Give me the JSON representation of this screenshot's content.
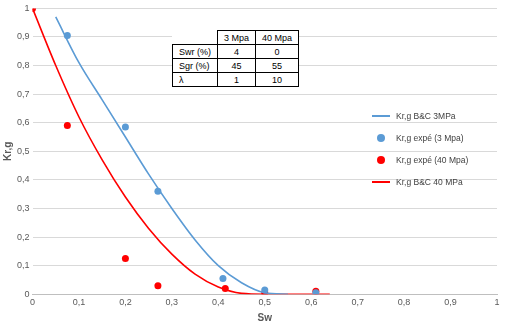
{
  "chart_data": {
    "type": "scatter",
    "x_label": "Sw",
    "y_label": "Kr,g",
    "xlim": [
      0,
      1
    ],
    "ylim": [
      0,
      1
    ],
    "xticks": [
      0,
      {
        "value": 0.1,
        "label": "0,1"
      },
      {
        "value": 0.2,
        "label": "0,2"
      },
      {
        "value": 0.3,
        "label": "0,3"
      },
      {
        "value": 0.4,
        "label": "0,4"
      },
      {
        "value": 0.5,
        "label": "0,5"
      },
      {
        "value": 0.6,
        "label": "0,6"
      },
      {
        "value": 0.7,
        "label": "0,7"
      },
      {
        "value": 0.8,
        "label": "0,8"
      },
      {
        "value": 0.9,
        "label": "0,9"
      },
      1
    ],
    "yticks": [
      0,
      {
        "value": 0.1,
        "label": "0,1"
      },
      {
        "value": 0.2,
        "label": "0,2"
      },
      {
        "value": 0.3,
        "label": "0,3"
      },
      {
        "value": 0.4,
        "label": "0,4"
      },
      {
        "value": 0.5,
        "label": "0,5"
      },
      {
        "value": 0.6,
        "label": "0,6"
      },
      {
        "value": 0.7,
        "label": "0,7"
      },
      {
        "value": 0.8,
        "label": "0,8"
      },
      {
        "value": 0.9,
        "label": "0,9"
      },
      1
    ],
    "grid": true,
    "legend": "right",
    "series": [
      {
        "name": "Kr,g B&C 3MPa",
        "type": "line",
        "marker": "none",
        "line_style": "solid",
        "color": "#5b9bd5",
        "x": [
          0.05,
          0.1,
          0.15,
          0.2,
          0.25,
          0.3,
          0.35,
          0.4,
          0.45,
          0.5,
          0.55
        ],
        "values": [
          0.97,
          0.81,
          0.68,
          0.55,
          0.42,
          0.3,
          0.19,
          0.1,
          0.04,
          0.005,
          0
        ]
      },
      {
        "name": "Kr,g expé (3 Mpa)",
        "type": "scatter",
        "marker": "circle",
        "color": "#5b9bd5",
        "x": [
          0.075,
          0.2,
          0.27,
          0.41,
          0.5,
          0.61
        ],
        "values": [
          0.905,
          0.585,
          0.36,
          0.055,
          0.015,
          0.005
        ]
      },
      {
        "name": "Kr,g expé (40 Mpa)",
        "type": "scatter",
        "marker": "circle",
        "color": "#ff0000",
        "x": [
          0,
          0.075,
          0.2,
          0.27,
          0.415,
          0.5,
          0.61
        ],
        "values": [
          1,
          0.59,
          0.125,
          0.03,
          0.02,
          0.005,
          0.01
        ]
      },
      {
        "name": "Kr,g B&C 40 MPa",
        "type": "line",
        "marker": "none",
        "line_style": "solid",
        "color": "#ff0000",
        "x": [
          0,
          0.05,
          0.1,
          0.15,
          0.2,
          0.25,
          0.3,
          0.35,
          0.4,
          0.45,
          0.5,
          0.55,
          0.6,
          0.64
        ],
        "values": [
          1,
          0.8,
          0.62,
          0.47,
          0.34,
          0.23,
          0.14,
          0.07,
          0.025,
          0.003,
          0,
          0,
          0,
          0
        ]
      }
    ]
  },
  "table": {
    "header": [
      "3 Mpa",
      "40 Mpa"
    ],
    "rows": [
      {
        "label": "Swr (%)",
        "values": [
          4,
          0
        ]
      },
      {
        "label": "Sgr (%)",
        "values": [
          45,
          55
        ]
      },
      {
        "label": "λ",
        "values": [
          1,
          10
        ]
      }
    ]
  }
}
